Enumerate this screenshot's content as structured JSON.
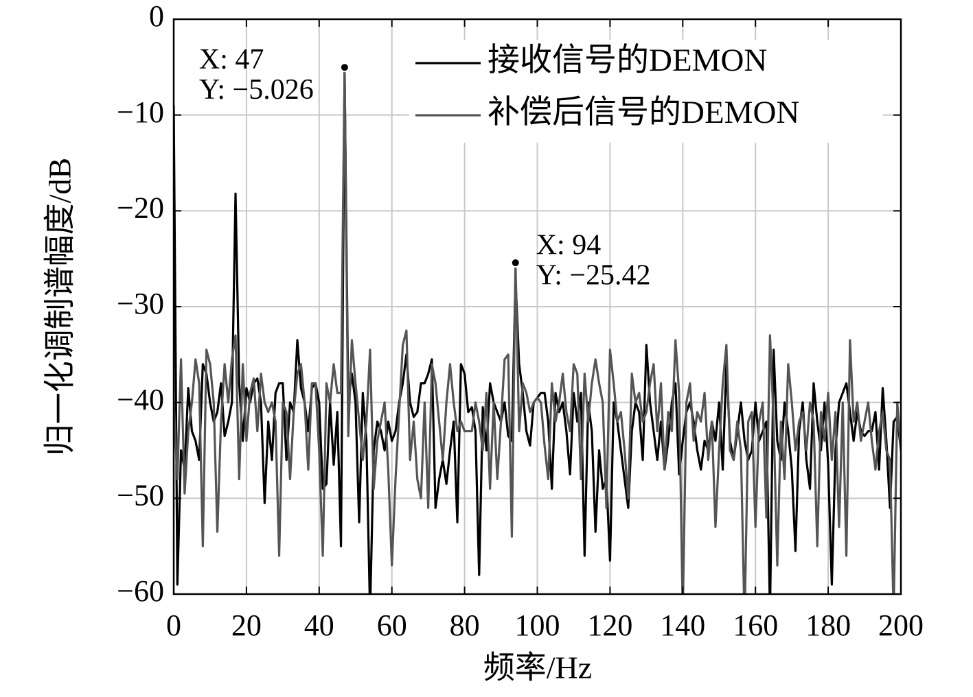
{
  "chart_data": {
    "type": "line",
    "xlabel": "频率/Hz",
    "ylabel": "归一化调制谱幅度/dB",
    "x": [
      0,
      1,
      2,
      3,
      4,
      5,
      6,
      7,
      8,
      9,
      10,
      11,
      12,
      13,
      14,
      15,
      16,
      17,
      18,
      19,
      20,
      21,
      22,
      23,
      24,
      25,
      26,
      27,
      28,
      29,
      30,
      31,
      32,
      33,
      34,
      35,
      36,
      37,
      38,
      39,
      40,
      41,
      42,
      43,
      44,
      45,
      46,
      47,
      48,
      49,
      50,
      51,
      52,
      53,
      54,
      55,
      56,
      57,
      58,
      59,
      60,
      61,
      62,
      63,
      64,
      65,
      66,
      67,
      68,
      69,
      70,
      71,
      72,
      73,
      74,
      75,
      76,
      77,
      78,
      79,
      80,
      81,
      82,
      83,
      84,
      85,
      86,
      87,
      88,
      89,
      90,
      91,
      92,
      93,
      94,
      95,
      96,
      97,
      98,
      99,
      100,
      101,
      102,
      103,
      104,
      105,
      106,
      107,
      108,
      109,
      110,
      111,
      112,
      113,
      114,
      115,
      116,
      117,
      118,
      119,
      120,
      121,
      122,
      123,
      124,
      125,
      126,
      127,
      128,
      129,
      130,
      131,
      132,
      133,
      134,
      135,
      136,
      137,
      138,
      139,
      140,
      141,
      142,
      143,
      144,
      145,
      146,
      147,
      148,
      149,
      150,
      151,
      152,
      153,
      154,
      155,
      156,
      157,
      158,
      159,
      160,
      161,
      162,
      163,
      164,
      165,
      166,
      167,
      168,
      169,
      170,
      171,
      172,
      173,
      174,
      175,
      176,
      177,
      178,
      179,
      180,
      181,
      182,
      183,
      184,
      185,
      186,
      187,
      188,
      189,
      190,
      191,
      192,
      193,
      194,
      195,
      196,
      197,
      198,
      199,
      200
    ],
    "series": [
      {
        "name": "接收信号的DEMON",
        "color": "#000000",
        "values": [
          -9,
          -59,
          -45,
          -47,
          -38.5,
          -43,
          -44,
          -46,
          -36,
          -37,
          -40,
          -42,
          -41,
          -38,
          -43.5,
          -42,
          -40,
          -18.2,
          -38,
          -44,
          -38.5,
          -40,
          -38,
          -37.5,
          -40,
          -50.5,
          -42,
          -46,
          -39,
          -38,
          -38,
          -46,
          -40,
          -41,
          -33.5,
          -38.5,
          -40,
          -43,
          -38.5,
          -38,
          -40,
          -49,
          -48.5,
          -40,
          -46.5,
          -41,
          -55,
          -5.5,
          -40,
          -37,
          -40,
          -52.5,
          -39,
          -44,
          -62,
          -45,
          -42,
          -43,
          -45,
          -42,
          -44,
          -43,
          -40,
          -38,
          -35,
          -40,
          -41.5,
          -41,
          -38,
          -38,
          -37,
          -35.5,
          -51,
          -48,
          -46,
          -48.5,
          -45,
          -42,
          -52.5,
          -36,
          -37,
          -41,
          -40.5,
          -43,
          -58,
          -40.5,
          -45,
          -38,
          -40,
          -41,
          -42,
          -40,
          -43.5,
          -44,
          -27,
          -36,
          -39,
          -43,
          -44.5,
          -40,
          -39.5,
          -39,
          -39,
          -42,
          -49,
          -39,
          -41,
          -40,
          -43,
          -47.5,
          -39,
          -42,
          -39,
          -56,
          -40,
          -43,
          -53.5,
          -45,
          -49,
          -48,
          -56.5,
          -40,
          -42,
          -45,
          -48,
          -51,
          -43,
          -40,
          -41,
          -46,
          -34,
          -40,
          -43,
          -46,
          -42,
          -47,
          -44,
          -40,
          -38,
          -47.5,
          -44,
          -41,
          -40,
          -42,
          -45,
          -47,
          -44,
          -45,
          -42,
          -44,
          -40,
          -47,
          -36,
          -44,
          -46,
          -43,
          -40,
          -44,
          -46,
          -45,
          -40,
          -44,
          -43,
          -42,
          -62,
          -34.5,
          -44,
          -46,
          -40,
          -43,
          -47,
          -55.5,
          -43,
          -40,
          -46,
          -49,
          -38,
          -42,
          -45,
          -40,
          -46.5,
          -59,
          -45,
          -40,
          -39,
          -38,
          -41,
          -44,
          -41,
          -43,
          -43.5,
          -43,
          -43,
          -41,
          -47,
          -38.5,
          -44,
          -51,
          -42,
          -41.5,
          -45
        ]
      },
      {
        "name": "补偿后信号的DEMON",
        "color": "#555555",
        "values": [
          -40,
          -48,
          -35.5,
          -49.5,
          -43,
          -40,
          -35.5,
          -38,
          -55,
          -34.5,
          -36,
          -40,
          -53.5,
          -42,
          -36,
          -40,
          -35.5,
          -33,
          -48,
          -36,
          -44,
          -39,
          -37.5,
          -43,
          -37,
          -40,
          -41,
          -40,
          -42,
          -56,
          -40,
          -41,
          -48,
          -41,
          -37,
          -36,
          -40,
          -47,
          -38,
          -38,
          -45,
          -56,
          -38,
          -40,
          -36,
          -39,
          -39,
          -5.026,
          -43.5,
          -33.5,
          -38,
          -42,
          -46,
          -42,
          -34.5,
          -49,
          -44,
          -42,
          -40,
          -47,
          -57,
          -48,
          -41,
          -34,
          -32.5,
          -46,
          -42,
          -48,
          -50,
          -40,
          -51,
          -36,
          -38,
          -42,
          -46,
          -40,
          -36,
          -40,
          -43,
          -42,
          -43,
          -43,
          -43,
          -40,
          -42,
          -45,
          -39,
          -49,
          -40,
          -48,
          -42,
          -35.5,
          -35,
          -54,
          -25.42,
          -43,
          -38,
          -39,
          -41,
          -40,
          -39.5,
          -40,
          -44.5,
          -48,
          -38,
          -42,
          -40,
          -37,
          -41,
          -43,
          -36,
          -37,
          -48,
          -37,
          -42,
          -38,
          -35.5,
          -38,
          -40,
          -51,
          -34.5,
          -38,
          -42,
          -41,
          -45,
          -50,
          -37,
          -40,
          -39,
          -42,
          -41,
          -38,
          -36,
          -43,
          -38,
          -47,
          -41,
          -43,
          -33.5,
          -39,
          -62,
          -40,
          -38,
          -44,
          -41,
          -42,
          -39,
          -46,
          -42,
          -53,
          -45,
          -38,
          -34,
          -45,
          -46,
          -42,
          -45,
          -63,
          -42,
          -41,
          -53,
          -42,
          -40,
          -52,
          -33,
          -42,
          -57,
          -42,
          -48,
          -36,
          -40,
          -45,
          -42,
          -41,
          -45,
          -40,
          -42,
          -55,
          -41,
          -44,
          -39,
          -46,
          -41,
          -53,
          -40,
          -56,
          -33.5,
          -42,
          -40,
          -44,
          -42,
          -40,
          -44,
          -47,
          -43,
          -41,
          -45,
          -46,
          -62,
          -40,
          -45
        ]
      }
    ],
    "annotations": [
      {
        "x": 47,
        "y": -5.026,
        "lines": [
          "X: 47",
          "Y: −5.026"
        ]
      },
      {
        "x": 94,
        "y": -25.42,
        "lines": [
          "X: 94",
          "Y: −25.42"
        ]
      }
    ],
    "xlim": [
      0,
      200
    ],
    "xticks": [
      0,
      20,
      40,
      60,
      80,
      100,
      120,
      140,
      160,
      180,
      200
    ],
    "ylim": [
      -60,
      0
    ],
    "yticks": [
      {
        "value": -60,
        "label": "−60"
      },
      {
        "value": -50,
        "label": "−50"
      },
      {
        "value": -40,
        "label": "−40"
      },
      {
        "value": -30,
        "label": "−30"
      },
      {
        "value": -20,
        "label": "−20"
      },
      {
        "value": -10,
        "label": "−10"
      },
      0
    ],
    "grid": true,
    "legend": "upper right"
  }
}
